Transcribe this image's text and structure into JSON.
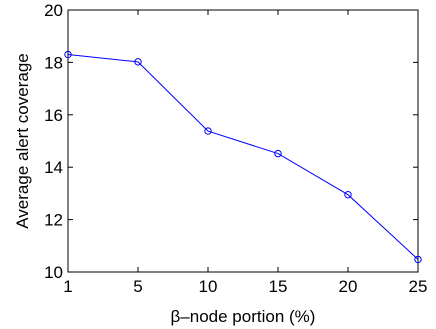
{
  "chart_data": {
    "type": "line",
    "xlabel": "β–node portion (%)",
    "ylabel": "Average alert coverage",
    "x_categories": [
      "1",
      "5",
      "10",
      "15",
      "20",
      "25"
    ],
    "x_tick_labels": [
      "1",
      "5",
      "10",
      "15",
      "20",
      "25"
    ],
    "y_ticks": [
      10,
      12,
      14,
      16,
      18,
      20
    ],
    "y_tick_labels": [
      "10",
      "12",
      "14",
      "16",
      "18",
      "20"
    ],
    "ylim": [
      10,
      20
    ],
    "grid": false,
    "series": [
      {
        "values": [
          18.3,
          18.02,
          15.38,
          14.52,
          12.95,
          10.48
        ],
        "marker": "circle"
      }
    ],
    "colors": {
      "line": "#0000ff",
      "axes": "#000000"
    }
  }
}
